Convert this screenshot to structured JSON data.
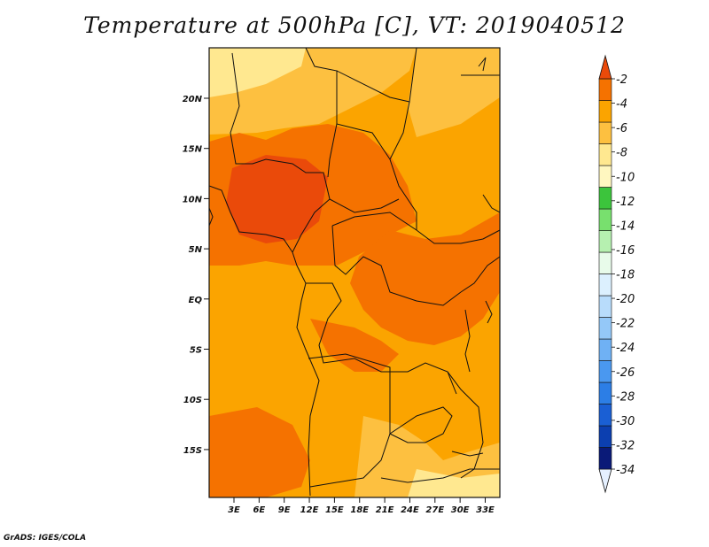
{
  "title": "Temperature at 500hPa [C], VT: 2019040512",
  "credit": "GrADS: IGES/COLA",
  "map": {
    "lat_labels": [
      "20N",
      "15N",
      "10N",
      "5N",
      "EQ",
      "5S",
      "10S",
      "15S"
    ],
    "lon_labels": [
      "3E",
      "6E",
      "9E",
      "12E",
      "15E",
      "18E",
      "21E",
      "24E",
      "27E",
      "30E",
      "33E"
    ]
  },
  "colorbar": {
    "labels": [
      "-2",
      "-4",
      "-6",
      "-8",
      "-10",
      "-12",
      "-14",
      "-16",
      "-18",
      "-20",
      "-22",
      "-24",
      "-26",
      "-28",
      "-30",
      "-32",
      "-34"
    ],
    "colors": [
      "#e5f0ff",
      "#0a1a78",
      "#0c3fb0",
      "#1a5fd4",
      "#2c7ee6",
      "#4a98f0",
      "#6fb1f4",
      "#94c8f8",
      "#b8dcfb",
      "#dcf0fe",
      "#e8fbea",
      "#b6f0b0",
      "#78e06e",
      "#3cc43c",
      "#fff7c0",
      "#ffe890",
      "#fdc040",
      "#fba400",
      "#f57200",
      "#ea4a0a"
    ]
  },
  "colors": {
    "c_-4": "#f57200",
    "c_-6": "#fba400",
    "c_-8": "#fdc040",
    "c_-10": "#ffe890",
    "c_deep": "#ea4a0a"
  }
}
